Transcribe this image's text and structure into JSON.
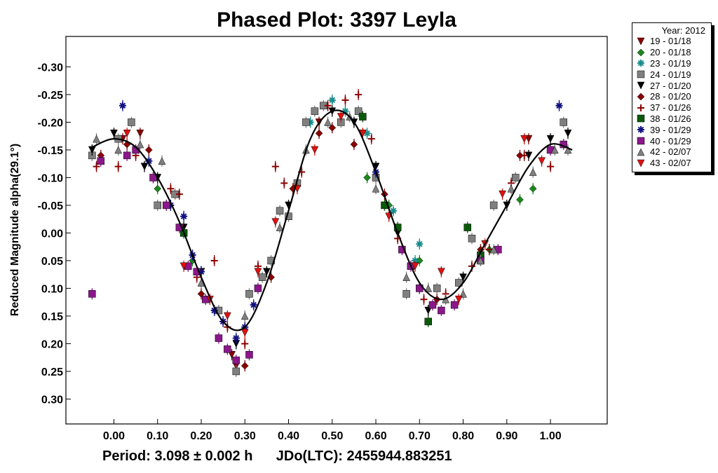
{
  "chart_data": {
    "type": "scatter",
    "title": "Phased Plot: 3397 Leyla",
    "xlabel": "",
    "ylabel": "Reduced Magnitude alpha(29.1°)",
    "x_ticks": [
      "0.00",
      "0.10",
      "0.20",
      "0.30",
      "0.40",
      "0.50",
      "0.60",
      "0.70",
      "0.80",
      "0.90",
      "1.00"
    ],
    "y_ticks": [
      "-0.30",
      "-0.25",
      "-0.20",
      "-0.15",
      "-0.10",
      "-0.05",
      "0.00",
      "0.05",
      "0.10",
      "0.15",
      "0.20",
      "0.25",
      "0.30"
    ],
    "xlim": [
      -0.11,
      1.13
    ],
    "ylim": [
      0.345,
      -0.355
    ],
    "y_inverted": true,
    "legend_title": "Year: 2012",
    "legend_position": "right, outside plot",
    "footer": "Period: 3.098 ± 0.002 h      JDo(LTC): 2455944.883251",
    "fit_curve": {
      "x": [
        -0.05,
        0.0,
        0.05,
        0.1,
        0.15,
        0.2,
        0.25,
        0.3,
        0.35,
        0.4,
        0.45,
        0.5,
        0.55,
        0.6,
        0.65,
        0.7,
        0.75,
        0.8,
        0.85,
        0.9,
        0.95,
        1.0,
        1.05
      ],
      "y": [
        -0.155,
        -0.17,
        -0.155,
        -0.1,
        -0.02,
        0.08,
        0.16,
        0.17,
        0.09,
        -0.04,
        -0.17,
        -0.22,
        -0.2,
        -0.11,
        0.0,
        0.09,
        0.12,
        0.09,
        0.02,
        -0.05,
        -0.12,
        -0.16,
        -0.15
      ]
    },
    "series": [
      {
        "name": "19 - 01/18",
        "marker": "tri-down",
        "color": "#8b0000",
        "x": [
          0.06,
          0.02,
          0.27,
          0.28,
          0.47,
          0.95
        ],
        "y": [
          -0.18,
          -0.17,
          0.22,
          0.24,
          -0.2,
          -0.17
        ]
      },
      {
        "name": "20 - 01/18",
        "marker": "diamond",
        "color": "#1a8a1a",
        "x": [
          0.1,
          0.12,
          0.18,
          0.58,
          0.63,
          0.7,
          0.86,
          0.93,
          0.96
        ],
        "y": [
          -0.08,
          -0.05,
          0.05,
          -0.1,
          -0.05,
          0.05,
          0.03,
          -0.06,
          -0.08
        ]
      },
      {
        "name": "23 - 01/19",
        "marker": "asterisk",
        "color": "#1a8c8c",
        "x": [
          0.45,
          0.5,
          0.53,
          0.58,
          0.64,
          0.69,
          0.7
        ],
        "y": [
          -0.2,
          -0.24,
          -0.22,
          -0.18,
          -0.04,
          0.05,
          0.02
        ]
      },
      {
        "name": "24 - 01/19",
        "marker": "square",
        "color": "#808080",
        "x": [
          -0.05,
          0.01,
          0.04,
          0.1,
          0.14,
          0.24,
          0.28,
          0.31,
          0.34,
          0.36,
          0.38,
          0.4,
          0.42,
          0.44,
          0.46,
          0.48,
          0.52,
          0.56,
          0.6,
          0.67,
          0.74,
          0.79,
          0.82,
          0.87,
          0.92,
          1.03
        ],
        "y": [
          -0.14,
          -0.17,
          -0.2,
          -0.05,
          -0.07,
          0.14,
          0.25,
          0.11,
          0.08,
          0.05,
          -0.04,
          -0.03,
          -0.09,
          -0.2,
          -0.22,
          -0.23,
          -0.2,
          -0.22,
          -0.1,
          0.11,
          0.1,
          0.09,
          0.01,
          -0.05,
          -0.1,
          -0.2
        ]
      },
      {
        "name": "27 - 01/20",
        "marker": "tri-down",
        "color": "#000000",
        "x": [
          -0.05,
          0.0,
          0.07,
          0.1,
          0.16,
          0.2,
          0.28,
          0.35,
          0.4,
          0.5,
          0.55,
          0.6,
          0.65,
          0.7,
          0.72,
          0.8,
          0.9,
          0.95,
          1.0,
          1.04
        ],
        "y": [
          -0.15,
          -0.18,
          -0.12,
          -0.1,
          -0.01,
          0.07,
          0.2,
          0.07,
          -0.05,
          -0.22,
          -0.2,
          -0.12,
          0.0,
          0.1,
          0.14,
          0.08,
          -0.05,
          -0.14,
          -0.17,
          -0.18
        ]
      },
      {
        "name": "28 - 01/20",
        "marker": "diamond",
        "color": "#8b0000",
        "x": [
          -0.03,
          0.03,
          0.08,
          0.2,
          0.3,
          0.36,
          0.41,
          0.47,
          0.5,
          0.55,
          0.62,
          0.74,
          0.84,
          0.93
        ],
        "y": [
          -0.14,
          -0.16,
          -0.15,
          0.11,
          0.24,
          0.08,
          -0.08,
          -0.18,
          -0.19,
          -0.16,
          -0.07,
          0.12,
          0.03,
          -0.14
        ]
      },
      {
        "name": "37 - 01/26",
        "marker": "plus",
        "color": "#8b0000",
        "x": [
          -0.04,
          0.01,
          0.05,
          0.09,
          0.13,
          0.15,
          0.19,
          0.23,
          0.26,
          0.3,
          0.33,
          0.37,
          0.39,
          0.43,
          0.49,
          0.53,
          0.56,
          0.59,
          0.65,
          0.71,
          0.76,
          0.82,
          0.86,
          0.91,
          0.94,
          1.0
        ],
        "y": [
          -0.12,
          -0.12,
          -0.14,
          -0.1,
          -0.08,
          -0.07,
          0.08,
          0.05,
          0.17,
          0.2,
          0.06,
          -0.12,
          -0.09,
          -0.11,
          -0.23,
          -0.24,
          -0.25,
          -0.17,
          0.01,
          0.12,
          0.11,
          0.06,
          0.03,
          -0.09,
          -0.14,
          -0.12
        ]
      },
      {
        "name": "38 - 01/26",
        "marker": "square",
        "color": "#0a5a0a",
        "x": [
          0.16,
          0.57,
          0.62,
          0.65,
          0.72,
          0.81,
          0.84
        ],
        "y": [
          0.0,
          -0.21,
          -0.05,
          -0.01,
          0.16,
          -0.01,
          0.04
        ]
      },
      {
        "name": "39 - 01/29",
        "marker": "asterisk",
        "color": "#101080",
        "x": [
          0.02,
          0.08,
          0.13,
          0.16,
          0.18,
          0.2,
          0.23,
          0.25,
          0.28,
          0.3,
          0.32,
          0.6,
          1.02
        ],
        "y": [
          -0.23,
          -0.13,
          -0.05,
          -0.03,
          0.04,
          0.07,
          0.14,
          0.16,
          0.19,
          0.17,
          0.13,
          -0.11,
          -0.23
        ]
      },
      {
        "name": "40 - 01/29",
        "marker": "square",
        "color": "#8b178b",
        "x": [
          -0.05,
          -0.03,
          0.03,
          0.05,
          0.09,
          0.12,
          0.15,
          0.17,
          0.19,
          0.21,
          0.24,
          0.26,
          0.28,
          0.31,
          0.33,
          0.66,
          0.68,
          0.7,
          0.73,
          0.75,
          0.78,
          0.84,
          0.88,
          1.0,
          1.03
        ],
        "y": [
          0.11,
          -0.13,
          -0.14,
          -0.15,
          -0.1,
          -0.05,
          -0.01,
          0.06,
          0.07,
          0.12,
          0.19,
          0.21,
          0.23,
          0.22,
          0.1,
          0.03,
          0.06,
          0.1,
          0.13,
          0.14,
          0.13,
          0.05,
          0.03,
          -0.15,
          -0.16
        ]
      },
      {
        "name": "42 - 02/07",
        "marker": "tri-up",
        "color": "#808080",
        "x": [
          -0.04,
          0.01,
          0.06,
          0.11,
          0.2,
          0.3,
          0.38,
          0.44,
          0.49,
          0.54,
          0.6,
          0.67,
          0.72,
          0.76,
          0.8,
          0.84,
          0.87,
          0.91,
          0.96,
          1.01,
          1.04
        ],
        "y": [
          -0.17,
          -0.15,
          -0.16,
          -0.13,
          0.09,
          0.15,
          -0.01,
          -0.15,
          -0.2,
          -0.21,
          -0.08,
          0.08,
          0.1,
          0.12,
          0.11,
          0.05,
          0.03,
          -0.08,
          -0.11,
          -0.15,
          -0.15
        ]
      },
      {
        "name": "43 - 02/07",
        "marker": "tri-down",
        "color": "#e01010",
        "x": [
          0.03,
          0.16,
          0.22,
          0.26,
          0.3,
          0.33,
          0.37,
          0.42,
          0.46,
          0.52,
          0.57,
          0.63,
          0.69,
          0.75,
          0.79,
          0.85,
          0.89,
          0.94,
          0.98
        ],
        "y": [
          -0.18,
          0.06,
          0.12,
          0.15,
          0.18,
          0.07,
          -0.02,
          -0.08,
          -0.15,
          -0.21,
          -0.18,
          -0.03,
          0.06,
          0.07,
          0.12,
          0.02,
          -0.07,
          -0.17,
          -0.13
        ]
      }
    ],
    "grid": false
  }
}
